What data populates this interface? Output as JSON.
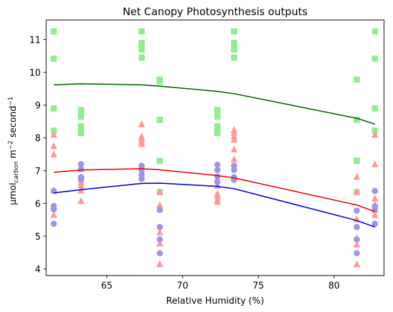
{
  "chart_data": {
    "type": "scatter",
    "title": "Net Canopy Photosynthesis outputs",
    "xlabel": "Relative Humidity (%)",
    "ylabel": {
      "main": "μmol",
      "sub": "carbon",
      "rest1": " m",
      "sup1": "−2",
      "rest2": " second",
      "sup2": "−1"
    },
    "xlim": [
      61.0,
      83.3
    ],
    "ylim": [
      3.8,
      11.6
    ],
    "xticks": [
      65,
      70,
      75,
      80
    ],
    "yticks": [
      4,
      5,
      6,
      7,
      8,
      9,
      10,
      11
    ],
    "grid": false,
    "series": [
      {
        "kind": "scatter",
        "marker": "square",
        "color": "#90ee90",
        "points": [
          [
            61.5,
            11.25
          ],
          [
            61.5,
            10.42
          ],
          [
            61.5,
            8.9
          ],
          [
            61.5,
            8.22
          ],
          [
            63.3,
            8.85
          ],
          [
            63.3,
            8.75
          ],
          [
            63.3,
            8.65
          ],
          [
            63.3,
            8.35
          ],
          [
            63.3,
            8.25
          ],
          [
            63.3,
            8.15
          ],
          [
            67.3,
            11.25
          ],
          [
            67.3,
            10.9
          ],
          [
            67.3,
            10.8
          ],
          [
            67.3,
            10.7
          ],
          [
            67.3,
            10.45
          ],
          [
            68.5,
            9.78
          ],
          [
            68.5,
            9.72
          ],
          [
            68.5,
            8.55
          ],
          [
            68.5,
            7.3
          ],
          [
            68.5,
            6.35
          ],
          [
            72.3,
            8.85
          ],
          [
            72.3,
            8.75
          ],
          [
            72.3,
            8.65
          ],
          [
            72.3,
            8.35
          ],
          [
            72.3,
            8.25
          ],
          [
            72.3,
            8.15
          ],
          [
            73.4,
            11.25
          ],
          [
            73.4,
            10.9
          ],
          [
            73.4,
            10.8
          ],
          [
            73.4,
            10.7
          ],
          [
            73.4,
            10.45
          ],
          [
            81.5,
            9.78
          ],
          [
            81.5,
            8.55
          ],
          [
            81.5,
            7.3
          ],
          [
            81.5,
            6.35
          ],
          [
            82.7,
            11.25
          ],
          [
            82.7,
            10.42
          ],
          [
            82.7,
            8.9
          ],
          [
            82.7,
            8.22
          ]
        ]
      },
      {
        "kind": "scatter",
        "marker": "triangle",
        "color": "#ff9999",
        "points": [
          [
            61.5,
            8.1
          ],
          [
            61.5,
            7.75
          ],
          [
            61.5,
            7.5
          ],
          [
            61.5,
            6.4
          ],
          [
            61.5,
            5.88
          ],
          [
            61.5,
            5.65
          ],
          [
            63.3,
            7.05
          ],
          [
            63.3,
            6.8
          ],
          [
            63.3,
            6.65
          ],
          [
            63.3,
            6.55
          ],
          [
            63.3,
            6.4
          ],
          [
            63.3,
            6.08
          ],
          [
            67.3,
            8.42
          ],
          [
            67.3,
            8.05
          ],
          [
            67.3,
            7.98
          ],
          [
            67.3,
            7.9
          ],
          [
            67.3,
            7.82
          ],
          [
            68.5,
            6.35
          ],
          [
            68.5,
            5.95
          ],
          [
            68.5,
            5.85
          ],
          [
            68.5,
            5.12
          ],
          [
            68.5,
            4.78
          ],
          [
            68.5,
            4.15
          ],
          [
            72.3,
            6.75
          ],
          [
            72.3,
            6.55
          ],
          [
            72.3,
            6.3
          ],
          [
            72.3,
            6.22
          ],
          [
            72.3,
            6.12
          ],
          [
            72.3,
            6.05
          ],
          [
            73.4,
            8.25
          ],
          [
            73.4,
            8.15
          ],
          [
            73.4,
            8.05
          ],
          [
            73.4,
            7.95
          ],
          [
            73.4,
            7.65
          ],
          [
            73.4,
            7.35
          ],
          [
            81.5,
            6.82
          ],
          [
            81.5,
            6.35
          ],
          [
            81.5,
            5.52
          ],
          [
            81.5,
            4.95
          ],
          [
            81.5,
            4.75
          ],
          [
            81.5,
            4.15
          ],
          [
            82.7,
            8.1
          ],
          [
            82.7,
            7.2
          ],
          [
            82.7,
            6.15
          ],
          [
            82.7,
            5.95
          ],
          [
            82.7,
            5.8
          ],
          [
            82.7,
            5.65
          ]
        ]
      },
      {
        "kind": "scatter",
        "marker": "circle",
        "color": "#9f94e6",
        "points": [
          [
            61.5,
            6.38
          ],
          [
            61.5,
            5.92
          ],
          [
            61.5,
            5.82
          ],
          [
            61.5,
            5.38
          ],
          [
            63.3,
            7.2
          ],
          [
            63.3,
            7.05
          ],
          [
            63.3,
            6.8
          ],
          [
            63.3,
            6.72
          ],
          [
            67.3,
            7.15
          ],
          [
            67.3,
            7.02
          ],
          [
            67.3,
            6.88
          ],
          [
            67.3,
            6.75
          ],
          [
            68.5,
            5.8
          ],
          [
            68.5,
            5.28
          ],
          [
            68.5,
            4.9
          ],
          [
            68.5,
            4.48
          ],
          [
            72.3,
            7.18
          ],
          [
            72.3,
            7.02
          ],
          [
            72.3,
            6.82
          ],
          [
            72.3,
            6.65
          ],
          [
            73.4,
            7.15
          ],
          [
            73.4,
            7.02
          ],
          [
            73.4,
            6.8
          ],
          [
            73.4,
            6.72
          ],
          [
            81.5,
            5.78
          ],
          [
            81.5,
            5.28
          ],
          [
            81.5,
            4.9
          ],
          [
            81.5,
            4.48
          ],
          [
            82.7,
            6.38
          ],
          [
            82.7,
            5.92
          ],
          [
            82.7,
            5.82
          ],
          [
            82.7,
            5.38
          ]
        ]
      },
      {
        "kind": "line",
        "color": "#006400",
        "points": [
          [
            61.5,
            9.62
          ],
          [
            63.3,
            9.65
          ],
          [
            67.3,
            9.62
          ],
          [
            68.5,
            9.58
          ],
          [
            72.3,
            9.42
          ],
          [
            73.4,
            9.35
          ],
          [
            81.5,
            8.6
          ],
          [
            82.7,
            8.42
          ]
        ]
      },
      {
        "kind": "line",
        "color": "#ee0000",
        "points": [
          [
            61.5,
            6.95
          ],
          [
            63.3,
            7.02
          ],
          [
            67.3,
            7.06
          ],
          [
            68.5,
            7.03
          ],
          [
            72.3,
            6.85
          ],
          [
            73.4,
            6.78
          ],
          [
            81.5,
            5.95
          ],
          [
            82.7,
            5.75
          ]
        ]
      },
      {
        "kind": "line",
        "color": "#0000dd",
        "points": [
          [
            61.5,
            6.32
          ],
          [
            63.3,
            6.42
          ],
          [
            67.3,
            6.61
          ],
          [
            68.5,
            6.62
          ],
          [
            72.3,
            6.52
          ],
          [
            73.4,
            6.45
          ],
          [
            81.5,
            5.48
          ],
          [
            82.7,
            5.28
          ]
        ]
      }
    ]
  }
}
